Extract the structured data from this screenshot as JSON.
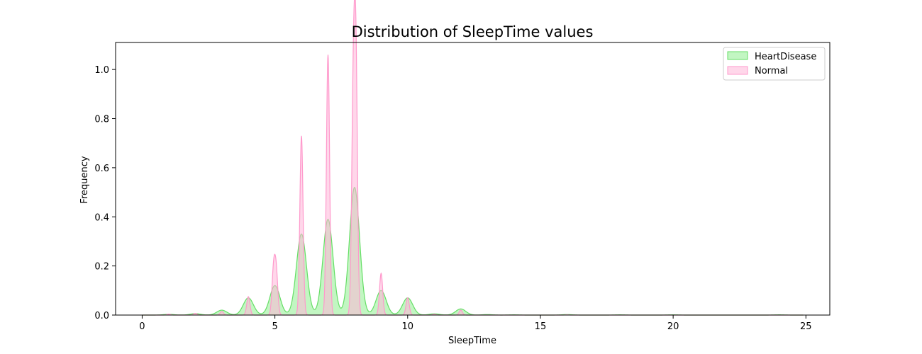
{
  "chart_data": {
    "type": "area",
    "title": "Distribution of SleepTime values",
    "xlabel": "SleepTime",
    "ylabel": "Frequency",
    "xlim": [
      -1,
      25.9
    ],
    "ylim": [
      0,
      1.11
    ],
    "xticks": [
      0,
      5,
      10,
      15,
      20,
      25
    ],
    "yticks": [
      0.0,
      0.2,
      0.4,
      0.6,
      0.8,
      1.0
    ],
    "ytick_labels": [
      "0.0",
      "0.2",
      "0.4",
      "0.6",
      "0.8",
      "1.0"
    ],
    "grid": false,
    "legend_position": "top-right",
    "series": [
      {
        "name": "HeartDisease",
        "fill": "#90EE90",
        "stroke": "#66DD66",
        "fill_opacity": 0.55,
        "peaks": [
          [
            1,
            0.003
          ],
          [
            2,
            0.006
          ],
          [
            3,
            0.02
          ],
          [
            4,
            0.07
          ],
          [
            5,
            0.12
          ],
          [
            6,
            0.33
          ],
          [
            7,
            0.39
          ],
          [
            8,
            0.52
          ],
          [
            9,
            0.1
          ],
          [
            10,
            0.07
          ],
          [
            11,
            0.005
          ],
          [
            12,
            0.025
          ],
          [
            13,
            0.002
          ],
          [
            14,
            0.001
          ],
          [
            16,
            0.002
          ],
          [
            18,
            0.001
          ],
          [
            20,
            0.001
          ],
          [
            24,
            0.001
          ]
        ],
        "width": 0.19
      },
      {
        "name": "Normal",
        "fill": "#FFB6D9",
        "stroke": "#FF99CC",
        "fill_opacity": 0.55,
        "peaks": [
          [
            1,
            0.004
          ],
          [
            2,
            0.007
          ],
          [
            3,
            0.015
          ],
          [
            4,
            0.075
          ],
          [
            4.95,
            0.18
          ],
          [
            5.05,
            0.17
          ],
          [
            6,
            0.73
          ],
          [
            7,
            1.06
          ],
          [
            7.95,
            0.84
          ],
          [
            8.05,
            1.0
          ],
          [
            9,
            0.17
          ],
          [
            10,
            0.07
          ],
          [
            11,
            0.003
          ],
          [
            12,
            0.02
          ],
          [
            16,
            0.001
          ]
        ],
        "width": 0.06
      }
    ]
  }
}
